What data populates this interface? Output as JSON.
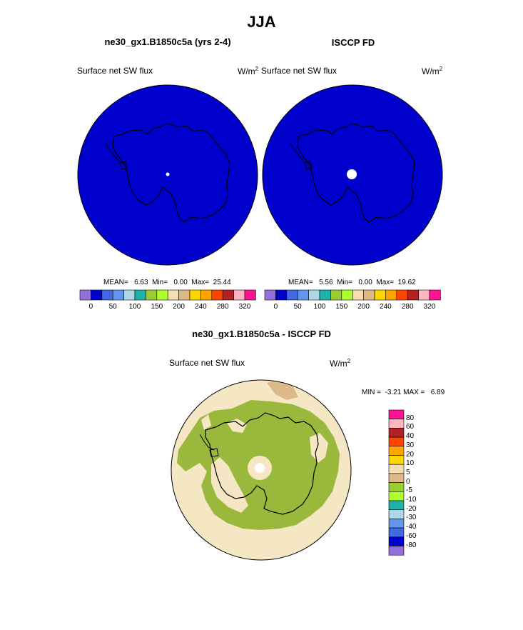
{
  "page": {
    "title": "JJA",
    "diff_title": "ne30_gx1.B1850c5a - ISCCP FD"
  },
  "panels": [
    {
      "title": "ne30_gx1.B1850c5a (yrs 2-4)",
      "var_label": "Surface net SW flux",
      "units_base": "W/m",
      "units_exp": "2",
      "stats": "MEAN=   6.63  Min=   0.00  Max=  25.44"
    },
    {
      "title": "ISCCP FD",
      "var_label": "Surface net SW flux",
      "units_base": "W/m",
      "units_exp": "2",
      "stats": "MEAN=   5.56  Min=   0.00  Max=  19.62"
    }
  ],
  "abs_colorbar": {
    "colors": [
      "#9370db",
      "#0000cd",
      "#4169e1",
      "#6495ed",
      "#add8e6",
      "#20b2aa",
      "#9acd32",
      "#adff2f",
      "#f5deb3",
      "#deb887",
      "#ffd700",
      "#ffa500",
      "#ff4500",
      "#b22222",
      "#ffb6c1",
      "#ff1493"
    ],
    "ticks": [
      "0",
      "50",
      "100",
      "150",
      "200",
      "240",
      "280",
      "320"
    ]
  },
  "diff_panel": {
    "var_label": "Surface net SW flux",
    "units_base": "W/m",
    "units_exp": "2",
    "minmax": "MIN =  -3.21 MAX =   6.89"
  },
  "diff_colorbar": {
    "colors": [
      "#ff1493",
      "#ffb6c1",
      "#b22222",
      "#ff4500",
      "#ffa500",
      "#ffd700",
      "#f5deb3",
      "#deb887",
      "#9acd32",
      "#adff2f",
      "#20b2aa",
      "#add8e6",
      "#6495ed",
      "#4169e1",
      "#0000cd",
      "#9370db"
    ],
    "labels": [
      "80",
      "60",
      "40",
      "30",
      "20",
      "10",
      "5",
      "0",
      "-5",
      "-10",
      "-20",
      "-30",
      "-40",
      "-60",
      "-80"
    ]
  },
  "map_colors": {
    "field_blue": "#0000cd",
    "diff_green": "#9ab83c",
    "diff_tan": "#f5e6c4",
    "diff_brown": "#dcb98a"
  }
}
